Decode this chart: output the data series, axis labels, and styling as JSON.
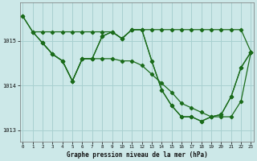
{
  "title": "Graphe pression niveau de la mer (hPa)",
  "bg_color": "#cce8e8",
  "grid_color": "#a8d0d0",
  "line_color": "#1a6b1a",
  "xlim": [
    -0.3,
    23.3
  ],
  "ylim": [
    1012.75,
    1015.85
  ],
  "yticks": [
    1013,
    1014,
    1015
  ],
  "xticks": [
    0,
    1,
    2,
    3,
    4,
    5,
    6,
    7,
    8,
    9,
    10,
    11,
    12,
    13,
    14,
    15,
    16,
    17,
    18,
    19,
    20,
    21,
    22,
    23
  ],
  "s1_x": [
    0,
    1,
    2,
    3,
    4,
    5,
    6,
    7,
    8,
    9,
    10,
    11,
    12,
    13,
    14,
    15,
    16,
    17,
    18,
    19,
    20,
    21,
    22,
    23
  ],
  "s1_y": [
    1015.55,
    1015.2,
    1015.2,
    1015.2,
    1015.2,
    1015.2,
    1015.2,
    1015.2,
    1015.2,
    1015.2,
    1015.05,
    1015.25,
    1015.25,
    1015.25,
    1015.25,
    1015.25,
    1015.25,
    1015.25,
    1015.25,
    1015.25,
    1015.25,
    1015.25,
    1015.25,
    1014.75
  ],
  "s2_x": [
    0,
    1,
    2,
    3,
    4,
    5,
    6,
    7,
    8,
    9,
    10,
    11,
    12,
    13,
    14,
    15,
    16,
    17,
    18,
    19,
    20,
    21,
    22,
    23
  ],
  "s2_y": [
    1015.55,
    1015.2,
    1014.95,
    1014.7,
    1014.55,
    1014.1,
    1014.6,
    1014.6,
    1014.6,
    1014.6,
    1014.55,
    1014.55,
    1014.45,
    1014.25,
    1014.05,
    1013.85,
    1013.6,
    1013.5,
    1013.4,
    1013.3,
    1013.3,
    1013.3,
    1013.65,
    1014.75
  ],
  "s3_x": [
    1,
    2,
    3,
    4,
    5,
    6,
    7,
    8,
    9,
    10,
    11,
    12,
    13,
    14,
    15,
    16,
    17,
    18,
    19,
    20,
    21,
    22,
    23
  ],
  "s3_y": [
    1015.2,
    1014.95,
    1014.7,
    1014.55,
    1014.1,
    1014.6,
    1014.6,
    1015.1,
    1015.2,
    1015.05,
    1015.25,
    1015.25,
    1014.55,
    1013.9,
    1013.55,
    1013.3,
    1013.3,
    1013.2,
    1013.3,
    1013.35,
    1013.75,
    1014.4,
    1014.75
  ],
  "s4_x": [
    2,
    3,
    4,
    5,
    6,
    7,
    8,
    9,
    10,
    11,
    12,
    13,
    14,
    15,
    16,
    17,
    18,
    19,
    20,
    21,
    22,
    23
  ],
  "s4_y": [
    1014.95,
    1014.7,
    1014.55,
    1014.1,
    1014.6,
    1014.6,
    1015.1,
    1015.2,
    1015.05,
    1015.25,
    1015.25,
    1014.55,
    1013.9,
    1013.55,
    1013.3,
    1013.3,
    1013.2,
    1013.3,
    1013.35,
    1013.75,
    1014.4,
    1014.75
  ]
}
